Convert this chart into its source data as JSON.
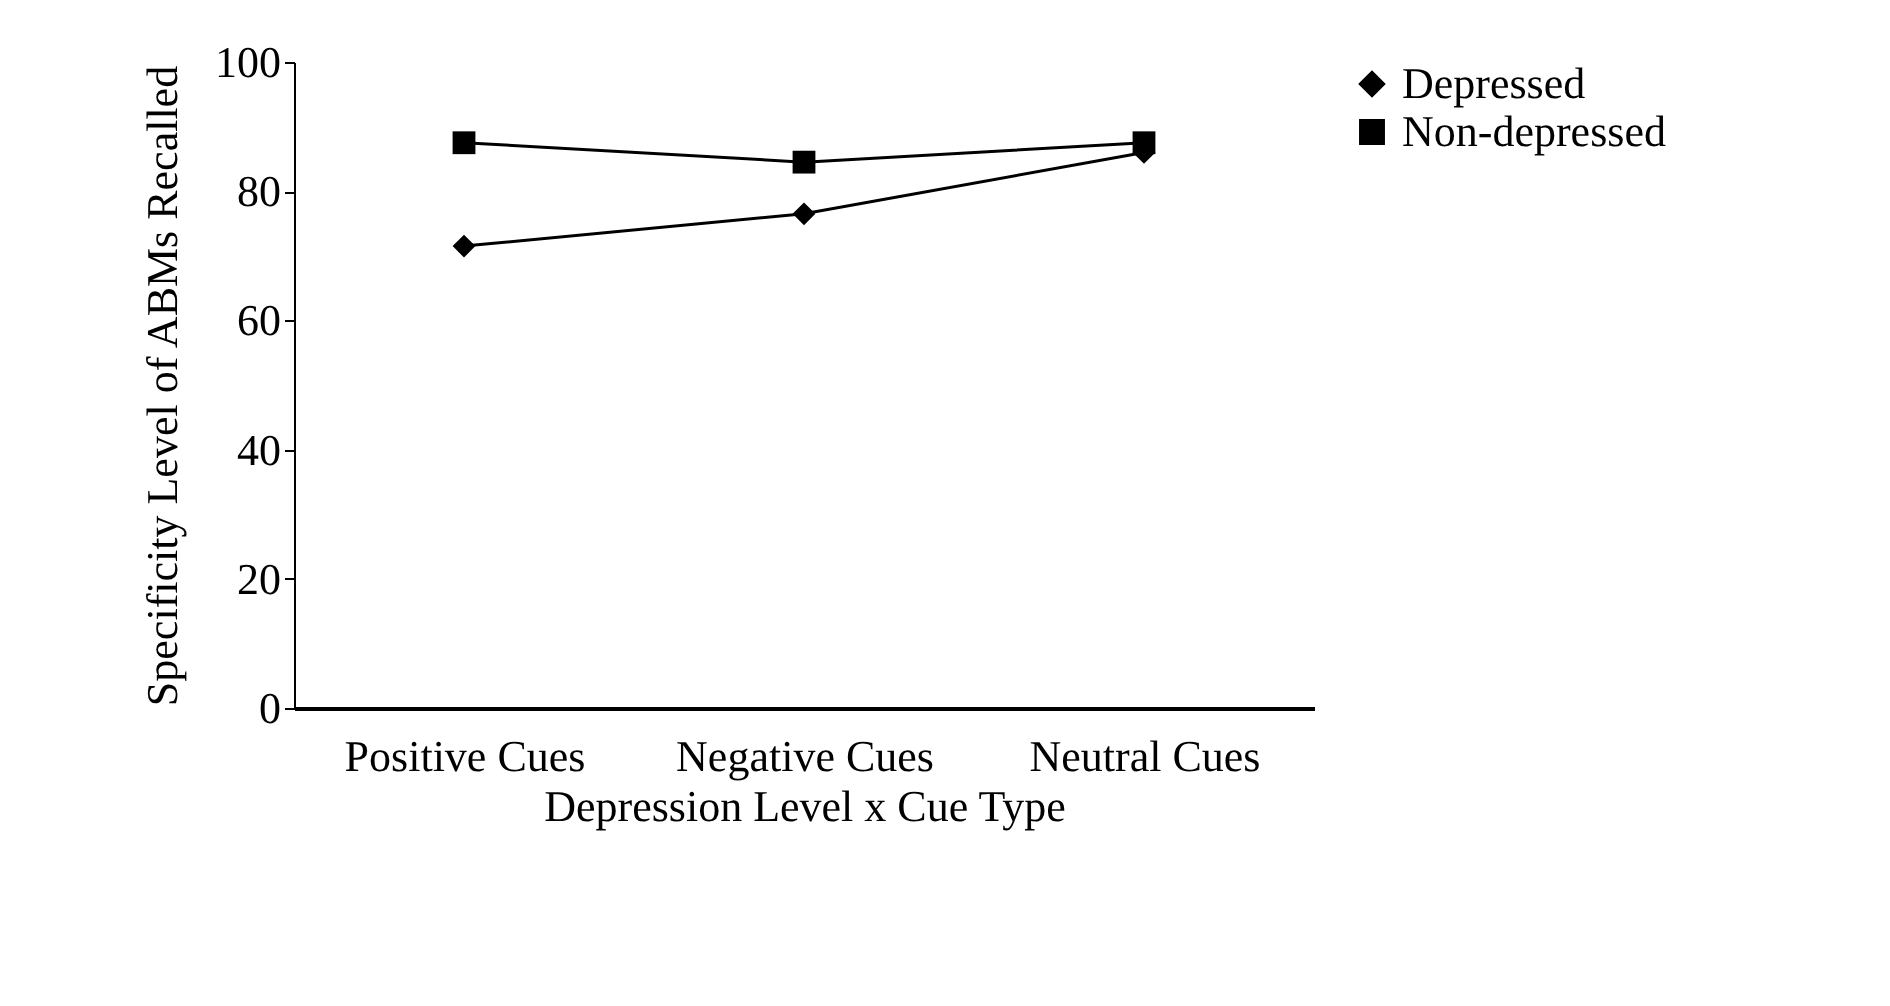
{
  "chart_data": {
    "type": "line",
    "xlabel": "Depression Level x Cue Type",
    "ylabel": "Specificity Level of ABMs Recalled",
    "categories": [
      "Positive Cues",
      "Negative Cues",
      "Neutral Cues"
    ],
    "series": [
      {
        "name": "Depressed",
        "color": "#000000",
        "marker": "diamond",
        "values": [
          71.5,
          76.5,
          86
        ]
      },
      {
        "name": "Non-depressed",
        "color": "#000000",
        "marker": "square",
        "values": [
          87.5,
          84.5,
          87.5
        ]
      }
    ],
    "ylim": [
      0,
      100
    ],
    "yticks": [
      0,
      20,
      40,
      60,
      80,
      100
    ],
    "grid": false,
    "legend": "right",
    "line_style": "solid"
  }
}
